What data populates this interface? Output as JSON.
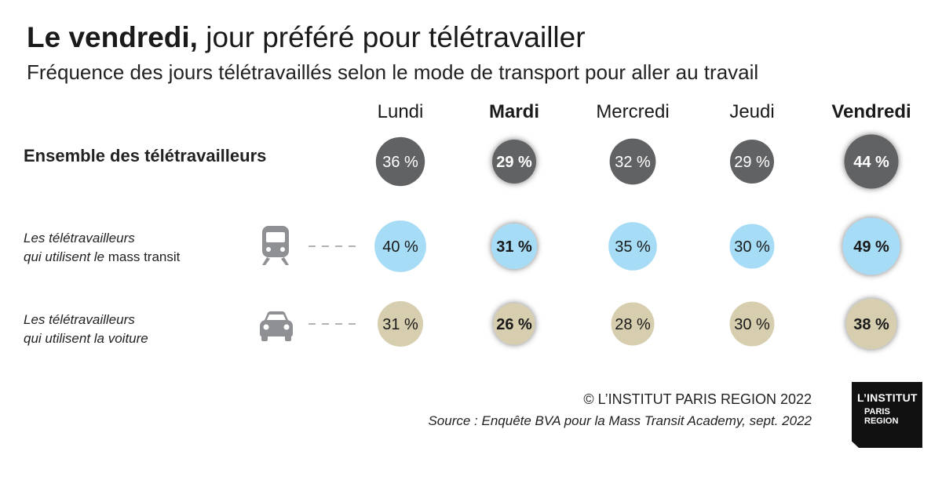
{
  "title_bold": "Le vendredi,",
  "title_rest": " jour préféré pour télétravailler",
  "subtitle": "Fréquence des jours télétravaillés selon le mode de transport pour aller au travail",
  "chart_data": {
    "type": "bubble-table",
    "title": "Le vendredi, jour préféré pour télétravailler",
    "subtitle": "Fréquence des jours télétravaillés selon le mode de transport pour aller au travail",
    "unit": "%",
    "categories": [
      "Lundi",
      "Mardi",
      "Mercredi",
      "Jeudi",
      "Vendredi"
    ],
    "highlight": [
      false,
      true,
      false,
      false,
      true
    ],
    "series": [
      {
        "name": "Ensemble des télétravailleurs",
        "color": "#616264",
        "text_color": "#ffffff",
        "values": [
          36,
          29,
          32,
          29,
          44
        ],
        "labels": [
          "36 %",
          "29 %",
          "32 %",
          "29 %",
          "44 %"
        ]
      },
      {
        "name": "Les télétravailleurs qui utilisent le mass transit",
        "color": "#a6dcf5",
        "text_color": "#1a1a1a",
        "values": [
          40,
          31,
          35,
          30,
          49
        ],
        "labels": [
          "40 %",
          "31 %",
          "35 %",
          "30 %",
          "49 %"
        ]
      },
      {
        "name": "Les télétravailleurs qui utilisent la voiture",
        "color": "#d6ceae",
        "text_color": "#1a1a1a",
        "values": [
          31,
          26,
          28,
          30,
          38
        ],
        "labels": [
          "31 %",
          "26 %",
          "28 %",
          "30 %",
          "38 %"
        ]
      }
    ]
  },
  "rows": {
    "all": "Ensemble des télétravailleurs",
    "transit_line1": "Les télétravailleurs",
    "transit_line2_a": "qui utilisent le ",
    "transit_line2_b": "mass transit",
    "car_line1": "Les télétravailleurs",
    "car_line2": "qui utilisent la voiture"
  },
  "icons": {
    "transit": "train-icon",
    "car": "car-icon"
  },
  "footer": {
    "copyright": "© L’INSTITUT PARIS REGION 2022",
    "source": "Source :  Enquête BVA pour la Mass Transit  Academy, sept. 2022"
  },
  "logo": {
    "line1": "L’INSTITUT",
    "line2": "PARIS",
    "line3": "REGION"
  }
}
